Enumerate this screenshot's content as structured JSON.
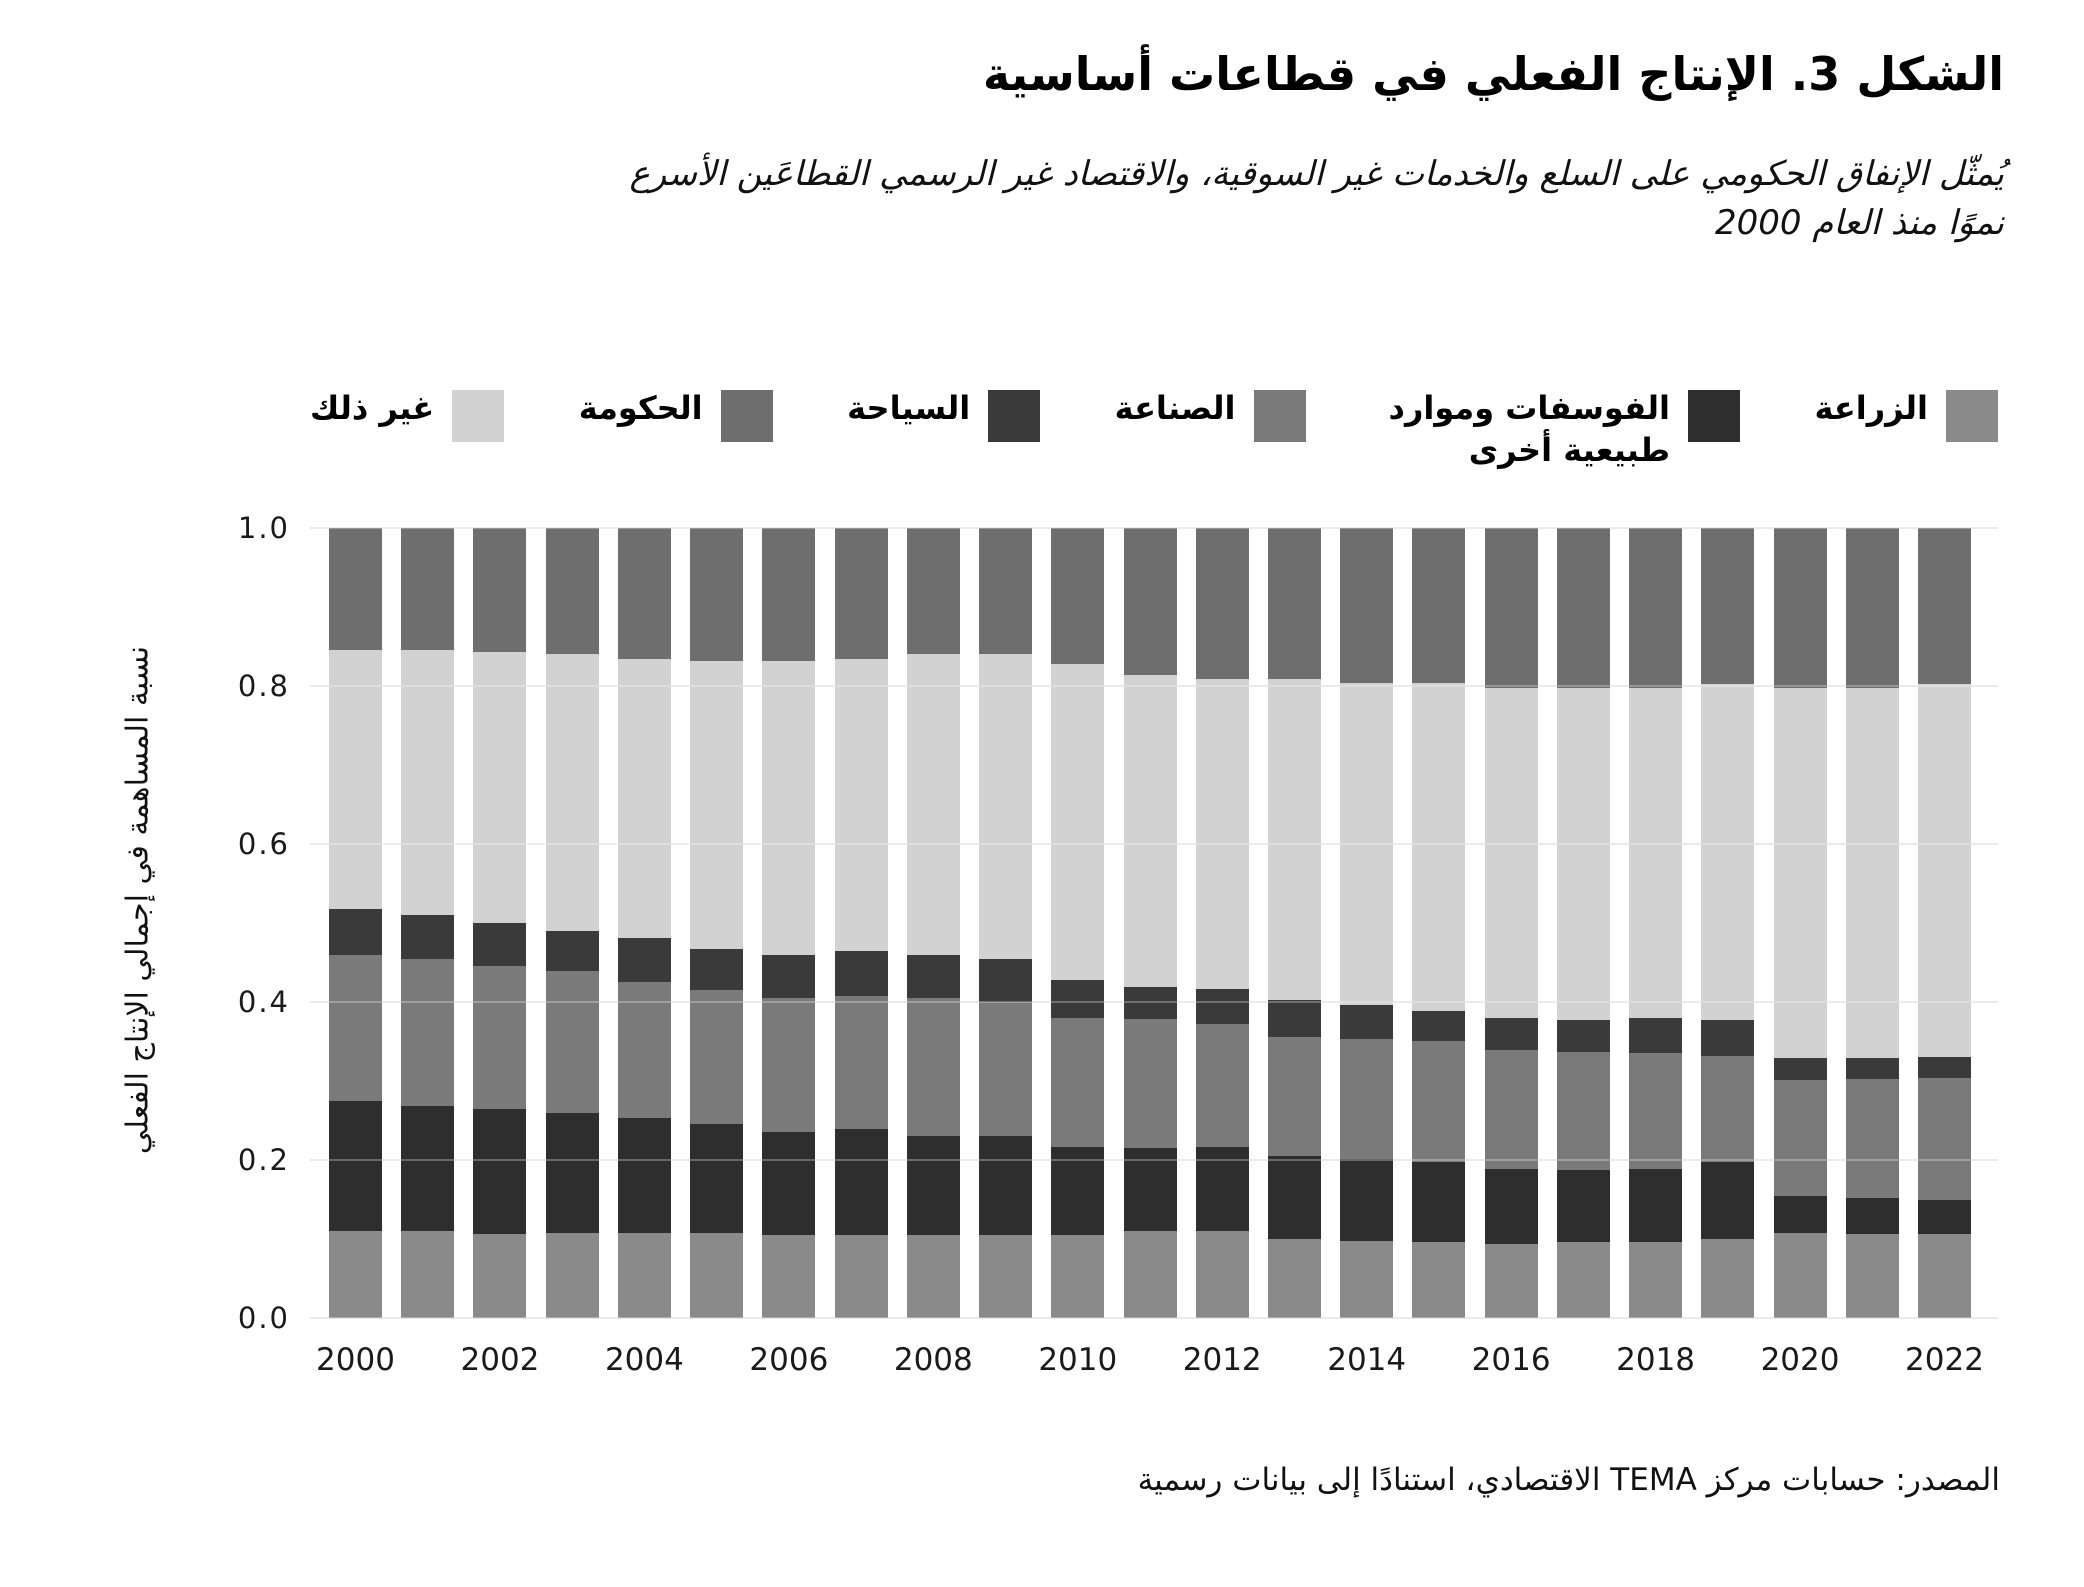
{
  "title": "الشكل 3. الإنتاج الفعلي في قطاعات أساسية",
  "subtitle": "يُمثّل الإنفاق الحكومي على السلع والخدمات غير السوقية، والاقتصاد غير الرسمي القطاعَين الأسرع\nنموًا منذ العام 2000",
  "source": "المصدر: حسابات مركز TEMA الاقتصادي، استنادًا إلى بيانات رسمية",
  "y_axis_title": "نسبة المساهمة في إجمالي الإنتاج الفعلي",
  "colors": {
    "agriculture": "#8a8a8a",
    "phosphates": "#2e2e2e",
    "industry": "#7a7a7a",
    "tourism": "#3a3a3a",
    "other": "#d2d2d2",
    "government": "#6e6e6e",
    "gridline": "#e4e4e4",
    "text": "#111111"
  },
  "chart_data": {
    "type": "bar",
    "stacked": true,
    "title": "الشكل 3. الإنتاج الفعلي في قطاعات أساسية",
    "xlabel": "",
    "ylabel": "نسبة المساهمة في إجمالي الإنتاج الفعلي",
    "ylim": [
      0,
      1.0
    ],
    "grid": true,
    "legend_position": "top",
    "x": [
      2000,
      2001,
      2002,
      2003,
      2004,
      2005,
      2006,
      2007,
      2008,
      2009,
      2010,
      2011,
      2012,
      2013,
      2014,
      2015,
      2016,
      2017,
      2018,
      2019,
      2020,
      2021,
      2022
    ],
    "xticks": [
      "2000",
      "2002",
      "2004",
      "2006",
      "2008",
      "2010",
      "2012",
      "2014",
      "2016",
      "2018",
      "2020",
      "2022"
    ],
    "yticks": [
      "1.0",
      "0.8",
      "0.6",
      "0.4",
      "0.2",
      "0.0"
    ],
    "series": [
      {
        "key": "agriculture",
        "name": "الزراعة",
        "color": "#8a8a8a",
        "values": [
          0.11,
          0.11,
          0.106,
          0.107,
          0.107,
          0.107,
          0.105,
          0.105,
          0.105,
          0.105,
          0.105,
          0.11,
          0.11,
          0.1,
          0.098,
          0.096,
          0.094,
          0.096,
          0.096,
          0.1,
          0.107,
          0.106,
          0.106
        ]
      },
      {
        "key": "phosphates",
        "name": "الفوسفات وموارد طبيعية أخرى",
        "color": "#2e2e2e",
        "values": [
          0.165,
          0.158,
          0.158,
          0.152,
          0.146,
          0.139,
          0.13,
          0.134,
          0.125,
          0.125,
          0.112,
          0.105,
          0.106,
          0.105,
          0.103,
          0.102,
          0.095,
          0.091,
          0.093,
          0.097,
          0.047,
          0.046,
          0.044
        ]
      },
      {
        "key": "industry",
        "name": "الصناعة",
        "color": "#7a7a7a",
        "values": [
          0.185,
          0.186,
          0.181,
          0.18,
          0.173,
          0.169,
          0.17,
          0.169,
          0.175,
          0.17,
          0.163,
          0.163,
          0.156,
          0.151,
          0.152,
          0.153,
          0.15,
          0.15,
          0.146,
          0.135,
          0.147,
          0.151,
          0.154
        ]
      },
      {
        "key": "tourism",
        "name": "السياحة",
        "color": "#3a3a3a",
        "values": [
          0.058,
          0.056,
          0.055,
          0.051,
          0.055,
          0.052,
          0.055,
          0.056,
          0.055,
          0.055,
          0.048,
          0.041,
          0.044,
          0.047,
          0.043,
          0.038,
          0.041,
          0.04,
          0.045,
          0.045,
          0.028,
          0.026,
          0.027
        ]
      },
      {
        "key": "other",
        "name": "غير ذلك",
        "color": "#d2d2d2",
        "values": [
          0.327,
          0.335,
          0.343,
          0.35,
          0.353,
          0.365,
          0.372,
          0.37,
          0.38,
          0.385,
          0.4,
          0.395,
          0.393,
          0.406,
          0.408,
          0.415,
          0.418,
          0.421,
          0.418,
          0.426,
          0.468,
          0.468,
          0.472
        ]
      },
      {
        "key": "government",
        "name": "الحكومة",
        "color": "#6e6e6e",
        "values": [
          0.155,
          0.155,
          0.157,
          0.16,
          0.166,
          0.168,
          0.168,
          0.166,
          0.16,
          0.16,
          0.172,
          0.186,
          0.191,
          0.191,
          0.196,
          0.196,
          0.202,
          0.202,
          0.202,
          0.197,
          0.203,
          0.203,
          0.197
        ]
      }
    ],
    "legend_order": [
      "agriculture",
      "phosphates",
      "industry",
      "tourism",
      "government",
      "other"
    ]
  }
}
